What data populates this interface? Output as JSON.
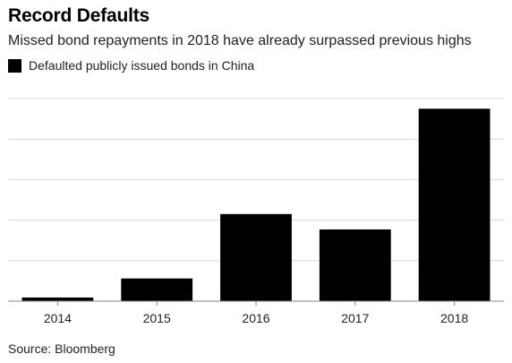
{
  "title": "Record Defaults",
  "subtitle": "Missed bond repayments in 2018 have already surpassed previous highs",
  "source": "Source: Bloomberg",
  "colors": {
    "bar": "#000000",
    "grid": "#d9d9d9",
    "axis": "#888888"
  },
  "chart_data": {
    "type": "bar",
    "categories": [
      "2014",
      "2015",
      "2016",
      "2017",
      "2018"
    ],
    "series": [
      {
        "name": "Defaulted publicly issued bonds in China",
        "values": [
          0.9,
          5.6,
          21.5,
          17.7,
          47.5
        ]
      }
    ],
    "title": "Record Defaults",
    "xlabel": "",
    "ylabel": "",
    "ylim": [
      0,
      50
    ],
    "grid": true,
    "y_ticks_labeled": false,
    "legend": "top-left"
  }
}
